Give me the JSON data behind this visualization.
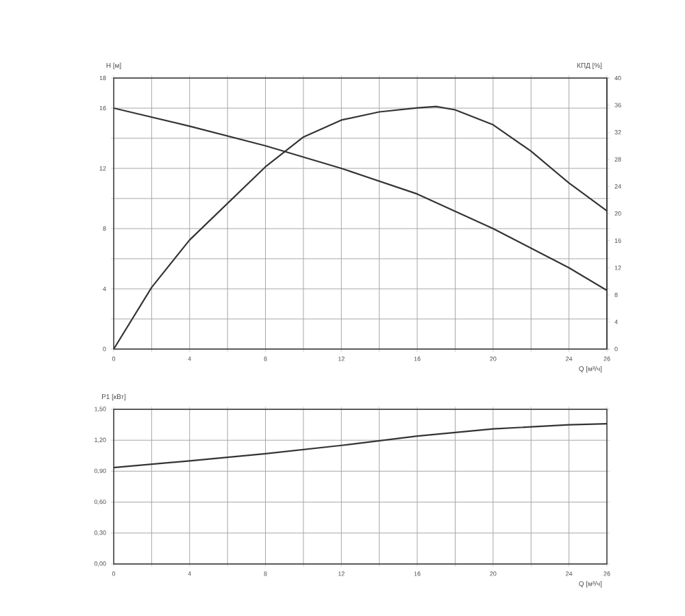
{
  "chart_data": [
    {
      "type": "line",
      "xlabel": "Q [м³/ч]",
      "ylabel": "H [м]",
      "y2label": "КПД [%]",
      "grid": true,
      "xlim": [
        0,
        26
      ],
      "ylim": [
        0,
        18
      ],
      "y2lim": [
        0,
        40
      ],
      "xticks": [
        0,
        {
          "value": 2,
          "label": null
        },
        4,
        {
          "value": 6,
          "label": null
        },
        8,
        {
          "value": 10,
          "label": null
        },
        12,
        {
          "value": 14,
          "label": null
        },
        16,
        {
          "value": 18,
          "label": null
        },
        20,
        {
          "value": 22,
          "label": null
        },
        24,
        26
      ],
      "yticks": [
        0,
        {
          "value": 2,
          "label": null
        },
        4,
        {
          "value": 6,
          "label": null
        },
        8,
        {
          "value": 10,
          "label": null
        },
        12,
        {
          "value": 14,
          "label": null
        },
        16,
        18
      ],
      "y2ticks": [
        0,
        4,
        8,
        12,
        16,
        20,
        24,
        28,
        32,
        36,
        40
      ],
      "series": [
        {
          "color": "#333333",
          "x": [
            0,
            4,
            8,
            12,
            16,
            20,
            24,
            26
          ],
          "values": [
            16,
            14.8,
            13.5,
            12.0,
            10.3,
            8.0,
            5.4,
            3.9
          ]
        },
        {
          "color": "#333333",
          "axis": "y2",
          "x": [
            0,
            2,
            4,
            6,
            8,
            10,
            12,
            14,
            16,
            17,
            18,
            20,
            22,
            24,
            26
          ],
          "values": [
            0,
            9.1,
            16.1,
            21.5,
            26.9,
            31.3,
            33.8,
            35.0,
            35.6,
            35.8,
            35.3,
            33.1,
            29.2,
            24.5,
            20.4
          ]
        }
      ]
    },
    {
      "type": "line",
      "xlabel": "Q [м³/ч]",
      "ylabel": "P1 [кВт]",
      "grid": true,
      "xlim": [
        0,
        26
      ],
      "ylim": [
        0,
        1.5
      ],
      "xticks": [
        0,
        {
          "value": 2,
          "label": null
        },
        4,
        {
          "value": 6,
          "label": null
        },
        8,
        {
          "value": 10,
          "label": null
        },
        12,
        {
          "value": 14,
          "label": null
        },
        16,
        {
          "value": 18,
          "label": null
        },
        20,
        {
          "value": 22,
          "label": null
        },
        24,
        26
      ],
      "yticks": [
        {
          "value": 0,
          "label": "0,00"
        },
        {
          "value": 0.3,
          "label": "0,30"
        },
        {
          "value": 0.6,
          "label": "0,60"
        },
        {
          "value": 0.9,
          "label": "0,90"
        },
        {
          "value": 1.2,
          "label": "1,20"
        },
        {
          "value": 1.5,
          "label": "1,50"
        }
      ],
      "series": [
        {
          "color": "#333333",
          "x": [
            0,
            4,
            8,
            12,
            16,
            20,
            24,
            26
          ],
          "values": [
            0.935,
            1.0,
            1.07,
            1.15,
            1.24,
            1.31,
            1.35,
            1.36
          ]
        }
      ]
    }
  ]
}
